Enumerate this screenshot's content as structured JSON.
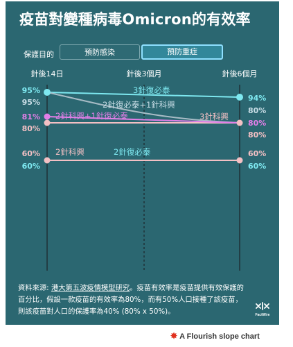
{
  "title": "疫苗對變種病毒Omicron的有效率",
  "controls": {
    "label": "保護目的",
    "tabs": [
      "預防感染",
      "預防重症"
    ],
    "active_tab": "預防重症"
  },
  "source": {
    "prefix": "資料來源: ",
    "link": "港大第五波疫情模型研究",
    "body": "。疫苗有效率是疫苗提供有效保護的百分比，假設一款疫苗的有效率為80%，而有50%人口接種了該疫苗，則該疫苗對人口的保護率為40% (80% x 50%)。"
  },
  "logo_text": "FactWire",
  "footer": "A Flourish slope chart",
  "colors": {
    "background": "#2b6771",
    "cyan": "#7ee8f0",
    "magenta": "#e27fe8",
    "pink": "#f3c0c4",
    "lightblue": "#c8dde6",
    "gray_line": "#a8bcc6"
  },
  "chart_data": {
    "type": "line",
    "title": "",
    "xlabel": "",
    "ylabel": "",
    "x": [
      "針後14日",
      "針後3個月",
      "針後6個月"
    ],
    "series": [
      {
        "name": "3針復必泰",
        "values": [
          95,
          null,
          94
        ],
        "color": "#7ee8f0",
        "label_color": "#7ee8f0",
        "start_label": "95%",
        "end_label": "94%"
      },
      {
        "name": "2針復必泰+1針科興",
        "values": [
          95,
          null,
          80
        ],
        "color": "#a8bcc6",
        "label_color": "#c8dde6",
        "start_label": "95%",
        "end_label": "80%"
      },
      {
        "name": "3針科興",
        "values": [
          80,
          null,
          80
        ],
        "color": "#f3c0c4",
        "label_color": "#f3c0c4",
        "start_label": "80%",
        "end_label": "80%"
      },
      {
        "name": "2針科興+1針復必泰",
        "values": [
          81,
          null,
          80
        ],
        "color": "#e27fe8",
        "label_color": "#e27fe8",
        "start_label": "81%",
        "end_label": "80%"
      },
      {
        "name": "2針科興",
        "values": [
          60,
          null,
          60
        ],
        "color": "#f3c0c4",
        "label_color": "#f3c0c4",
        "start_label": "60%",
        "end_label": "60%"
      },
      {
        "name": "2針復必泰",
        "values": [
          60,
          null,
          60
        ],
        "color": "#f3c0c4",
        "label_color": "#7ee8f0",
        "start_label": "60%",
        "end_label": "60%"
      }
    ]
  }
}
